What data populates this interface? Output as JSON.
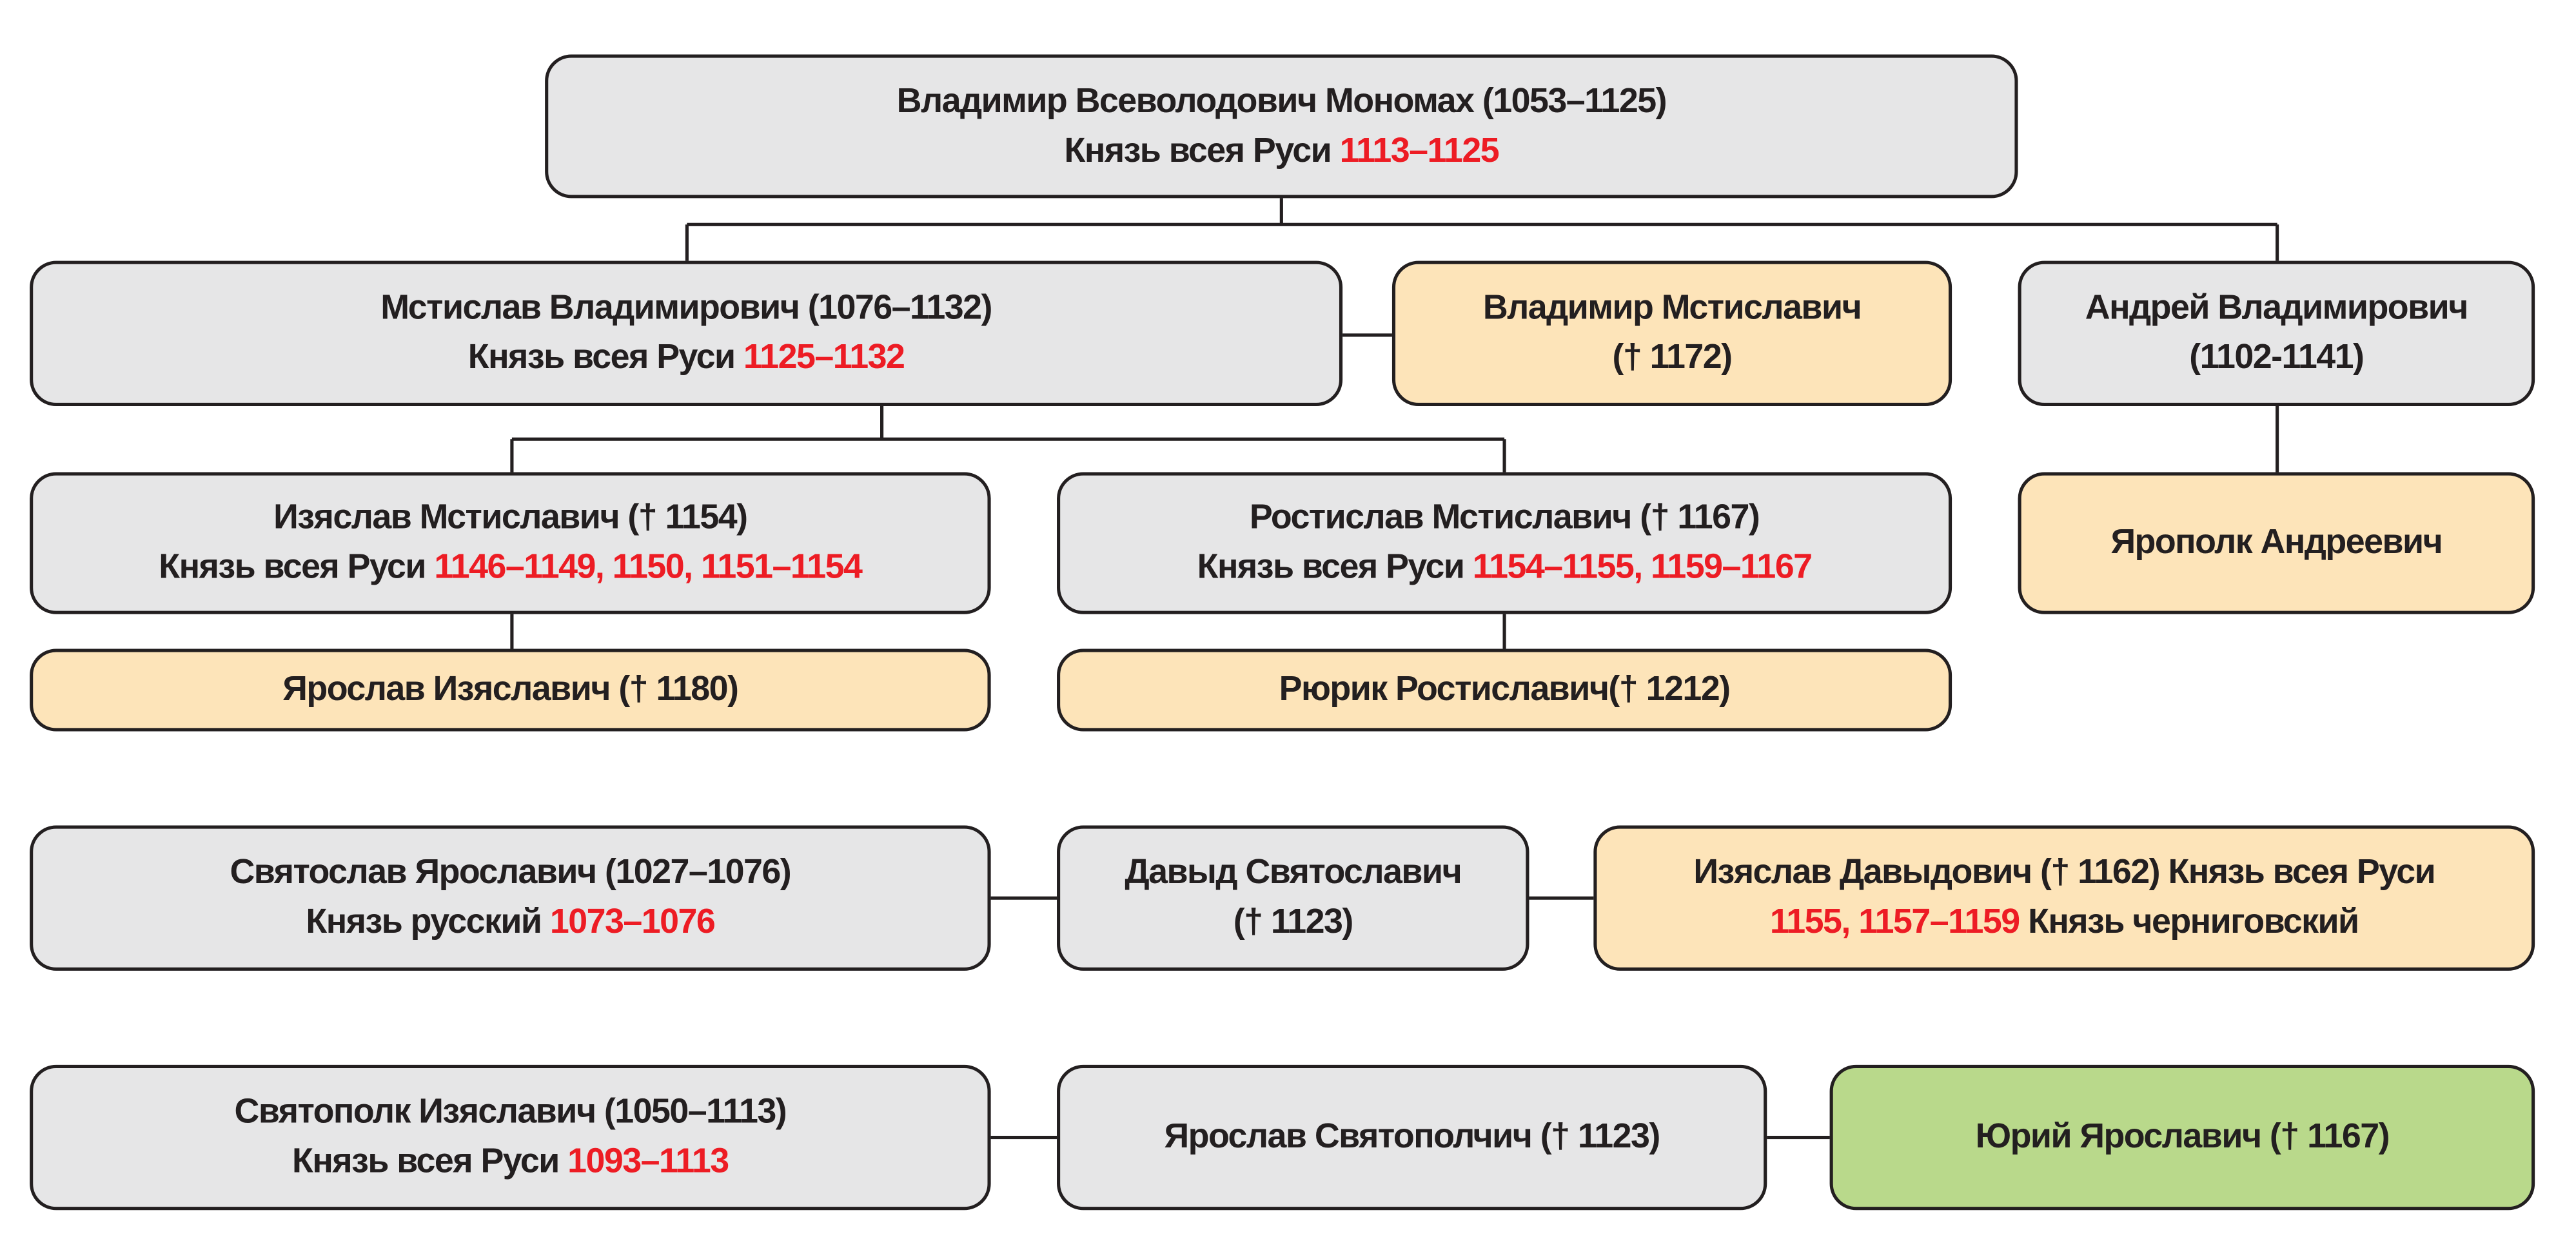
{
  "colors": {
    "gray": "#e6e6e7",
    "orange": "#fde4b9",
    "green": "#b9d98b",
    "dates": "#ed1c24"
  },
  "nodes": [
    {
      "id": "vladimir-monomakh",
      "color": "gray",
      "lines": [
        [
          {
            "t": "Владимир Всеволодович Мономах (1053–1125)"
          }
        ],
        [
          {
            "t": "Князь всея Руси "
          },
          {
            "t": "1113–1125",
            "red": true
          }
        ]
      ]
    },
    {
      "id": "mstislav-vladimirovich",
      "color": "gray",
      "lines": [
        [
          {
            "t": "Мстислав Владимирович (1076–1132)"
          }
        ],
        [
          {
            "t": "Князь всея Руси "
          },
          {
            "t": "1125–1132",
            "red": true
          }
        ]
      ]
    },
    {
      "id": "vladimir-mstislavich",
      "color": "orange",
      "lines": [
        [
          {
            "t": "Владимир Мстиславич"
          }
        ],
        [
          {
            "t": "(† 1172)"
          }
        ]
      ]
    },
    {
      "id": "andrei-vladimirovich",
      "color": "gray",
      "lines": [
        [
          {
            "t": "Андрей Владимирович"
          }
        ],
        [
          {
            "t": "(1102-1141)"
          }
        ]
      ]
    },
    {
      "id": "izyaslav-mstislavich",
      "color": "gray",
      "lines": [
        [
          {
            "t": "Изяслав Мстиславич († 1154)"
          }
        ],
        [
          {
            "t": "Князь всея Руси "
          },
          {
            "t": "1146–1149, 1150, 1151–1154",
            "red": true
          }
        ]
      ]
    },
    {
      "id": "rostislav-mstislavich",
      "color": "gray",
      "lines": [
        [
          {
            "t": "Ростислав Мстиславич († 1167)"
          }
        ],
        [
          {
            "t": "Князь всея Руси "
          },
          {
            "t": "1154–1155, 1159–1167",
            "red": true
          }
        ]
      ]
    },
    {
      "id": "yaropolk-andreevich",
      "color": "orange",
      "lines": [
        [
          {
            "t": "Ярополк Андреевич"
          }
        ]
      ]
    },
    {
      "id": "yaroslav-izyaslavich",
      "color": "orange",
      "lines": [
        [
          {
            "t": "Ярослав Изяславич († 1180)"
          }
        ]
      ]
    },
    {
      "id": "ryurik-rostislavich",
      "color": "orange",
      "lines": [
        [
          {
            "t": "Рюрик Ростиславич(† 1212)"
          }
        ]
      ]
    },
    {
      "id": "svyatoslav-yaroslavich",
      "color": "gray",
      "lines": [
        [
          {
            "t": "Святослав Ярославич (1027–1076)"
          }
        ],
        [
          {
            "t": "Князь русский "
          },
          {
            "t": "1073–1076",
            "red": true
          }
        ]
      ]
    },
    {
      "id": "davyd-svyatoslavich",
      "color": "gray",
      "lines": [
        [
          {
            "t": "Давыд Святославич"
          }
        ],
        [
          {
            "t": "(† 1123)"
          }
        ]
      ]
    },
    {
      "id": "izyaslav-davydovich",
      "color": "orange",
      "lines": [
        [
          {
            "t": "Изяслав Давыдович († 1162) Князь всея Руси"
          }
        ],
        [
          {
            "t": "1155, 1157–1159",
            "red": true
          },
          {
            "t": " Князь черниговский"
          }
        ]
      ]
    },
    {
      "id": "svyatopolk-izyaslavich",
      "color": "gray",
      "lines": [
        [
          {
            "t": "Святополк Изяславич (1050–1113)"
          }
        ],
        [
          {
            "t": "Князь всея Руси "
          },
          {
            "t": "1093–1113",
            "red": true
          }
        ]
      ]
    },
    {
      "id": "yaroslav-svyatopolchich",
      "color": "gray",
      "lines": [
        [
          {
            "t": "Ярослав Святополчич († 1123)"
          }
        ]
      ]
    },
    {
      "id": "yuri-yaroslavich",
      "color": "green",
      "lines": [
        [
          {
            "t": "Юрий Ярославич († 1167)"
          }
        ]
      ]
    }
  ]
}
